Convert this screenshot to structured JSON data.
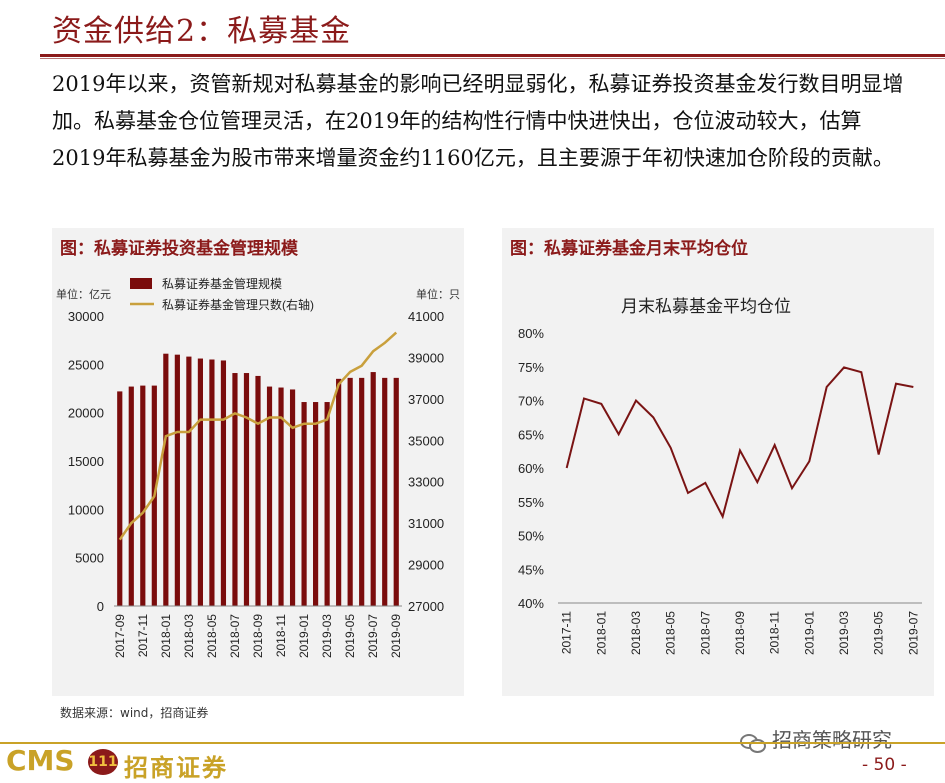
{
  "slide": {
    "title": "资金供给2：私募基金",
    "intro": "2019年以来，资管新规对私募基金的影响已经明显弱化，私募证券投资基金发行数目明显增加。私募基金仓位管理灵活，在2019年的结构性行情中快进快出，仓位波动较大，估算2019年私募基金为股市带来增量资金约1160亿元，且主要源于年初快速加仓阶段的贡献。",
    "source": "数据来源：wind，招商证券",
    "logo_text": "CMS",
    "logo_badge": "111",
    "logo_cn": "招商证券",
    "wechat": "招商策略研究",
    "page_number": "- 50 -"
  },
  "colors": {
    "accent": "#8b1a1a",
    "bar": "#7a0c0c",
    "line_gold": "#c9a03d",
    "line_right": "#7a1414",
    "gold": "#c9a227"
  },
  "chart_data": [
    {
      "type": "bar+line",
      "panel_title": "图：私募证券投资基金管理规模",
      "left_unit": "单位：亿元",
      "right_unit": "单位：只",
      "legend_bar": "私募证券基金管理规模",
      "legend_line": "私募证券基金管理只数(右轴)",
      "legend_position": "top",
      "categories": [
        "2017-09",
        "2017-10",
        "2017-11",
        "2017-12",
        "2018-01",
        "2018-02",
        "2018-03",
        "2018-04",
        "2018-05",
        "2018-06",
        "2018-07",
        "2018-08",
        "2018-09",
        "2018-10",
        "2018-11",
        "2018-12",
        "2019-01",
        "2019-02",
        "2019-03",
        "2019-04",
        "2019-05",
        "2019-06",
        "2019-07",
        "2019-08",
        "2019-09"
      ],
      "tick_labels": [
        "2017-09",
        "2017-11",
        "2018-01",
        "2018-03",
        "2018-05",
        "2018-07",
        "2018-09",
        "2018-11",
        "2019-01",
        "2019-03",
        "2019-05",
        "2019-07",
        "2019-09"
      ],
      "bar_values": [
        22200,
        22700,
        22800,
        22800,
        26100,
        26000,
        25800,
        25600,
        25500,
        25400,
        24100,
        24100,
        23800,
        22700,
        22600,
        22400,
        21100,
        21100,
        21100,
        23500,
        23600,
        23600,
        24200,
        23600,
        23600
      ],
      "line_values": [
        30200,
        31000,
        31500,
        32300,
        35200,
        35400,
        35400,
        36000,
        36000,
        36000,
        36300,
        36100,
        35800,
        36100,
        36100,
        35600,
        35800,
        35800,
        36000,
        37700,
        38300,
        38600,
        39300,
        39700,
        40200
      ],
      "y_left": {
        "min": 0,
        "max": 30000,
        "ticks": [
          0,
          5000,
          10000,
          15000,
          20000,
          25000,
          30000
        ]
      },
      "y_right": {
        "min": 27000,
        "max": 41000,
        "ticks": [
          27000,
          29000,
          31000,
          33000,
          35000,
          37000,
          39000,
          41000
        ]
      }
    },
    {
      "type": "line",
      "panel_title": "图：私募证券基金月末平均仓位",
      "title": "月末私募基金平均仓位",
      "categories": [
        "2017-11",
        "2017-12",
        "2018-01",
        "2018-02",
        "2018-03",
        "2018-04",
        "2018-05",
        "2018-06",
        "2018-07",
        "2018-08",
        "2018-09",
        "2018-10",
        "2018-11",
        "2018-12",
        "2019-01",
        "2019-02",
        "2019-03",
        "2019-04",
        "2019-05",
        "2019-06",
        "2019-07"
      ],
      "tick_labels": [
        "2017-11",
        "2018-01",
        "2018-03",
        "2018-05",
        "2018-07",
        "2018-09",
        "2018-11",
        "2019-01",
        "2019-03",
        "2019-05",
        "2019-07"
      ],
      "values": [
        60.0,
        70.3,
        69.5,
        65.0,
        70.0,
        67.5,
        63.0,
        56.3,
        57.8,
        52.8,
        62.6,
        57.9,
        63.4,
        57.0,
        61.0,
        72.0,
        74.9,
        74.2,
        62.0,
        72.5,
        72.0
      ],
      "y": {
        "min": 40,
        "max": 80,
        "ticks": [
          40,
          45,
          50,
          55,
          60,
          65,
          70,
          75,
          80
        ],
        "unit": "%"
      }
    }
  ]
}
